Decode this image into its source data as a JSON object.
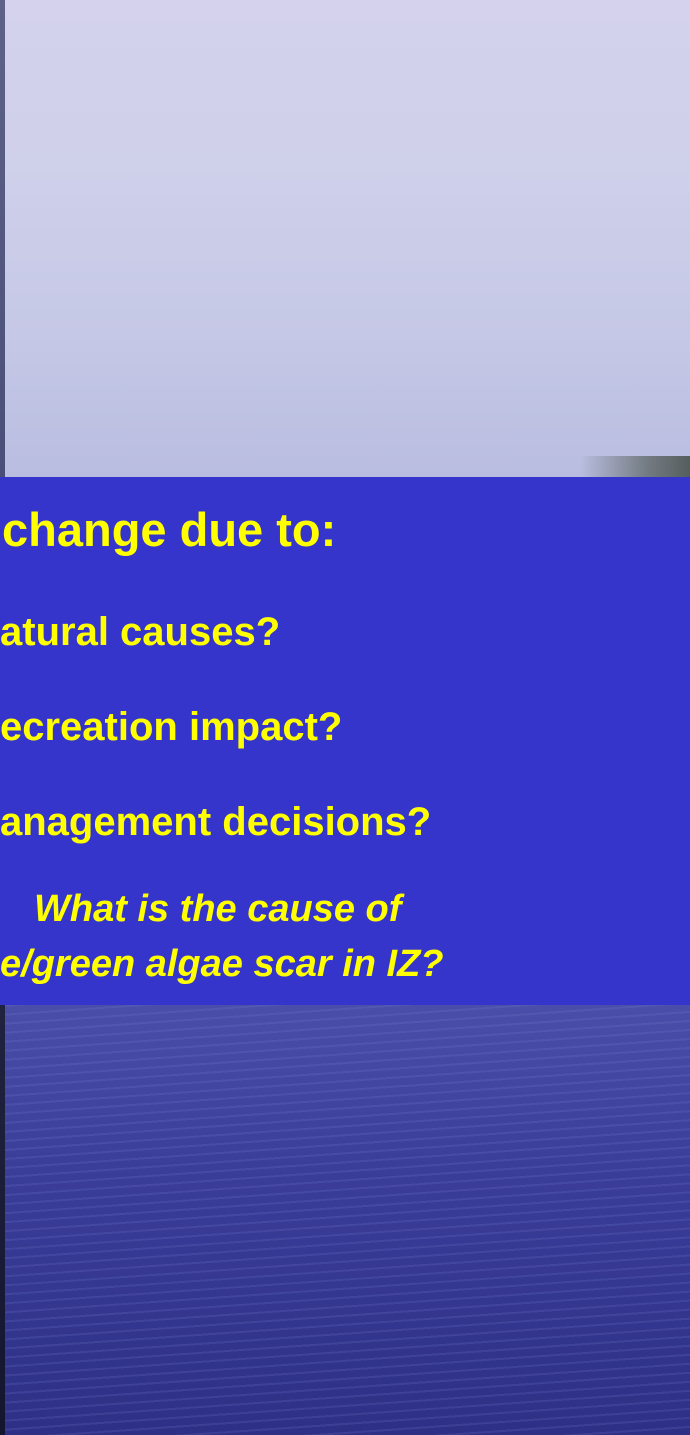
{
  "slide": {
    "heading": "change due to:",
    "bullets": [
      "atural causes?",
      "ecreation impact?",
      "anagement decisions?"
    ],
    "sub_bullet": [
      "What is the cause of",
      "e/green algae scar in IZ?"
    ]
  }
}
